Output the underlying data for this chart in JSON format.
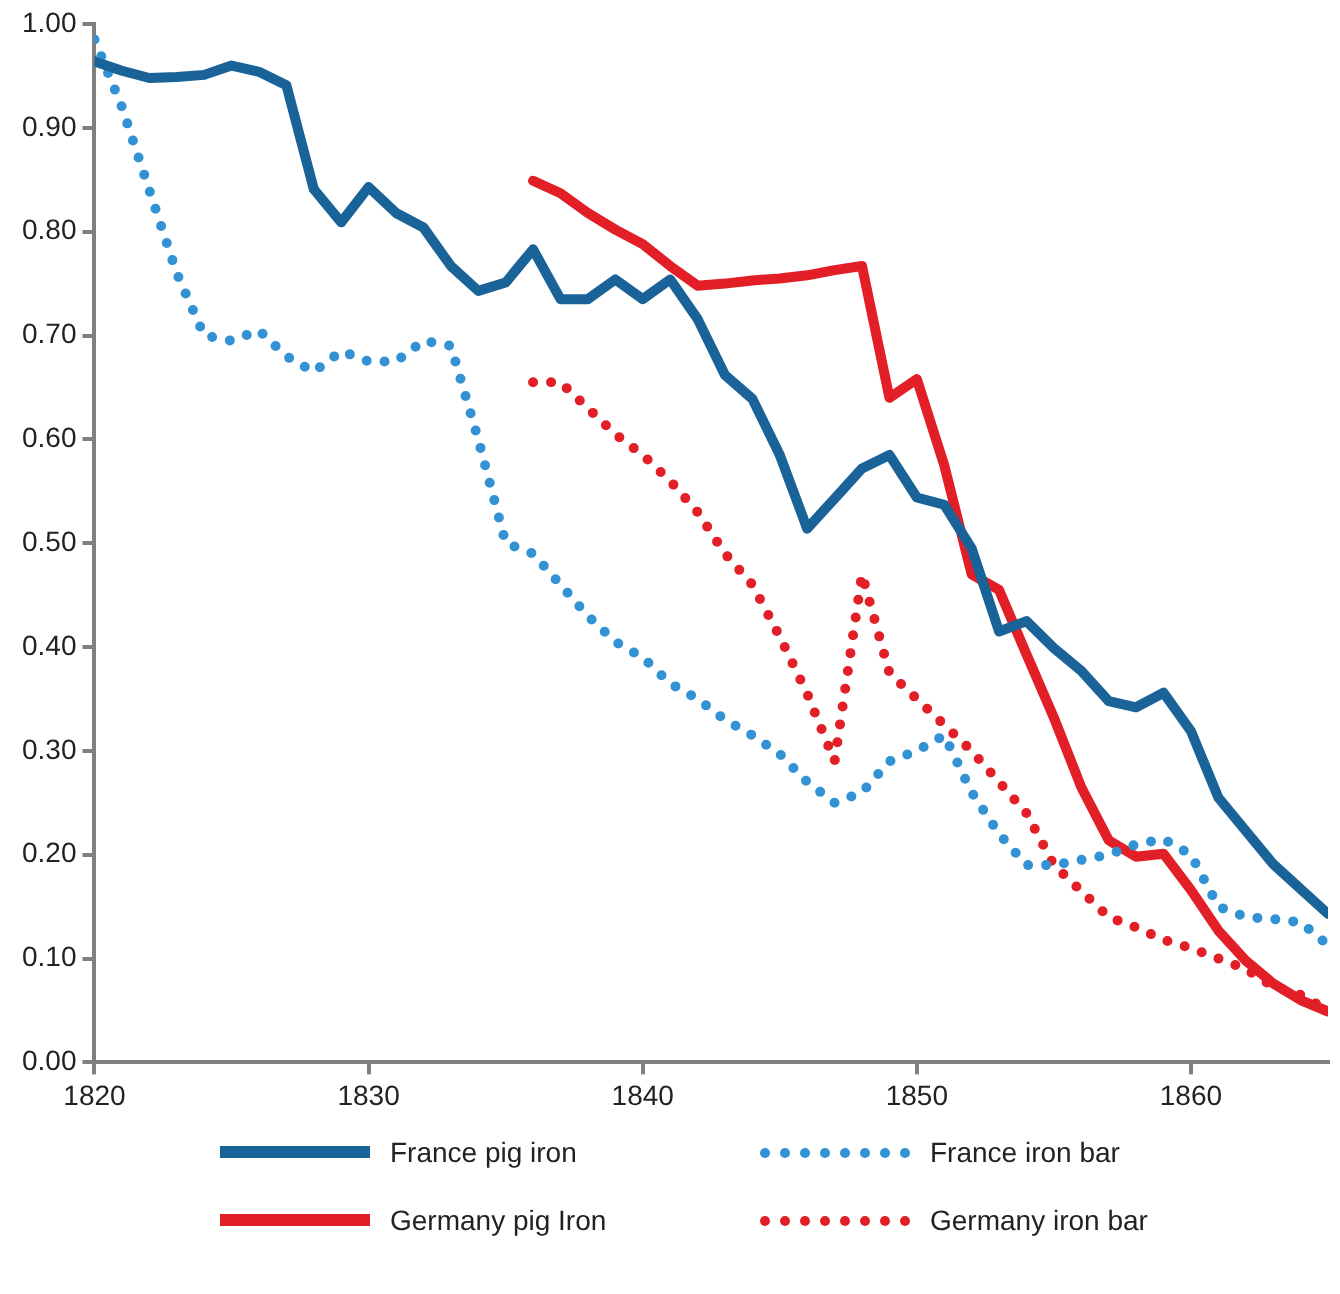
{
  "chart_data": {
    "type": "line",
    "xlim": [
      1820,
      1865
    ],
    "xticks": [
      1820,
      1830,
      1840,
      1850,
      1860
    ],
    "ylim": [
      0,
      1
    ],
    "yticks": [
      {
        "value": 0,
        "label": "0.00"
      },
      {
        "value": 0.1,
        "label": "0.10"
      },
      {
        "value": 0.2,
        "label": "0.20"
      },
      {
        "value": 0.3,
        "label": "0.30"
      },
      {
        "value": 0.4,
        "label": "0.40"
      },
      {
        "value": 0.5,
        "label": "0.50"
      },
      {
        "value": 0.6,
        "label": "0.60"
      },
      {
        "value": 0.7,
        "label": "0.70"
      },
      {
        "value": 0.8,
        "label": "0.80"
      },
      {
        "value": 0.9,
        "label": "0.90"
      },
      {
        "value": 1,
        "label": "1.00"
      }
    ],
    "grid": false,
    "legend": "bottom",
    "marker": "none",
    "series": [
      {
        "name": "France pig iron",
        "color": "#1a6399",
        "line_style": "solid",
        "x": [
          1820,
          1821,
          1822,
          1823,
          1824,
          1825,
          1826,
          1827,
          1828,
          1829,
          1830,
          1831,
          1832,
          1833,
          1834,
          1835,
          1836,
          1837,
          1838,
          1839,
          1840,
          1841,
          1842,
          1843,
          1844,
          1845,
          1846,
          1847,
          1848,
          1849,
          1850,
          1851,
          1852,
          1853,
          1854,
          1855,
          1856,
          1857,
          1858,
          1859,
          1860,
          1861,
          1862,
          1863,
          1864,
          1865
        ],
        "values": [
          0.964,
          0.955,
          0.948,
          0.949,
          0.951,
          0.96,
          0.954,
          0.941,
          0.841,
          0.809,
          0.843,
          0.818,
          0.804,
          0.767,
          0.743,
          0.751,
          0.783,
          0.735,
          0.735,
          0.754,
          0.735,
          0.754,
          0.716,
          0.662,
          0.639,
          0.585,
          0.514,
          0.543,
          0.572,
          0.585,
          0.544,
          0.537,
          0.495,
          0.415,
          0.425,
          0.399,
          0.377,
          0.348,
          0.342,
          0.356,
          0.319,
          0.255,
          0.223,
          0.191,
          0.167,
          0.143
        ]
      },
      {
        "name": "France iron bar",
        "color": "#3392d4",
        "line_style": "dotted",
        "x": [
          1820,
          1821,
          1822,
          1823,
          1824,
          1825,
          1826,
          1827,
          1828,
          1829,
          1830,
          1831,
          1832,
          1833,
          1834,
          1835,
          1836,
          1837,
          1838,
          1839,
          1840,
          1841,
          1842,
          1843,
          1844,
          1845,
          1846,
          1847,
          1848,
          1849,
          1850,
          1851,
          1852,
          1853,
          1854,
          1855,
          1856,
          1857,
          1858,
          1859,
          1860,
          1861,
          1862,
          1863,
          1864,
          1865
        ],
        "values": [
          0.985,
          0.92,
          0.84,
          0.76,
          0.7,
          0.695,
          0.705,
          0.68,
          0.665,
          0.685,
          0.675,
          0.675,
          0.695,
          0.69,
          0.6,
          0.5,
          0.49,
          0.46,
          0.43,
          0.405,
          0.39,
          0.365,
          0.35,
          0.33,
          0.315,
          0.297,
          0.27,
          0.25,
          0.26,
          0.29,
          0.3,
          0.315,
          0.26,
          0.22,
          0.19,
          0.19,
          0.195,
          0.2,
          0.21,
          0.215,
          0.2,
          0.15,
          0.14,
          0.138,
          0.135,
          0.113
        ]
      },
      {
        "name": "Germany pig Iron",
        "color": "#e21f26",
        "line_style": "solid",
        "x": [
          1836,
          1837,
          1838,
          1839,
          1840,
          1841,
          1842,
          1843,
          1844,
          1845,
          1846,
          1847,
          1848,
          1849,
          1850,
          1851,
          1852,
          1853,
          1854,
          1855,
          1856,
          1857,
          1858,
          1859,
          1860,
          1861,
          1862,
          1863,
          1864,
          1865
        ],
        "values": [
          0.849,
          0.837,
          0.818,
          0.802,
          0.788,
          0.767,
          0.748,
          0.75,
          0.753,
          0.755,
          0.758,
          0.763,
          0.767,
          0.64,
          0.658,
          0.575,
          0.47,
          0.455,
          0.393,
          0.332,
          0.265,
          0.214,
          0.198,
          0.201,
          0.166,
          0.127,
          0.098,
          0.076,
          0.06,
          0.049
        ]
      },
      {
        "name": "Germany iron bar",
        "color": "#e21f26",
        "line_style": "dotted",
        "x": [
          1836,
          1837,
          1838,
          1839,
          1840,
          1841,
          1842,
          1843,
          1844,
          1845,
          1846,
          1847,
          1848,
          1849,
          1850,
          1851,
          1852,
          1853,
          1854,
          1855,
          1856,
          1857,
          1858,
          1859,
          1860,
          1861,
          1862,
          1863,
          1864,
          1865
        ],
        "values": [
          0.655,
          0.655,
          0.63,
          0.605,
          0.585,
          0.56,
          0.53,
          0.49,
          0.46,
          0.41,
          0.355,
          0.29,
          0.47,
          0.375,
          0.35,
          0.325,
          0.3,
          0.27,
          0.24,
          0.19,
          0.165,
          0.14,
          0.13,
          0.118,
          0.11,
          0.1,
          0.09,
          0.073,
          0.065,
          0.05
        ]
      }
    ]
  }
}
